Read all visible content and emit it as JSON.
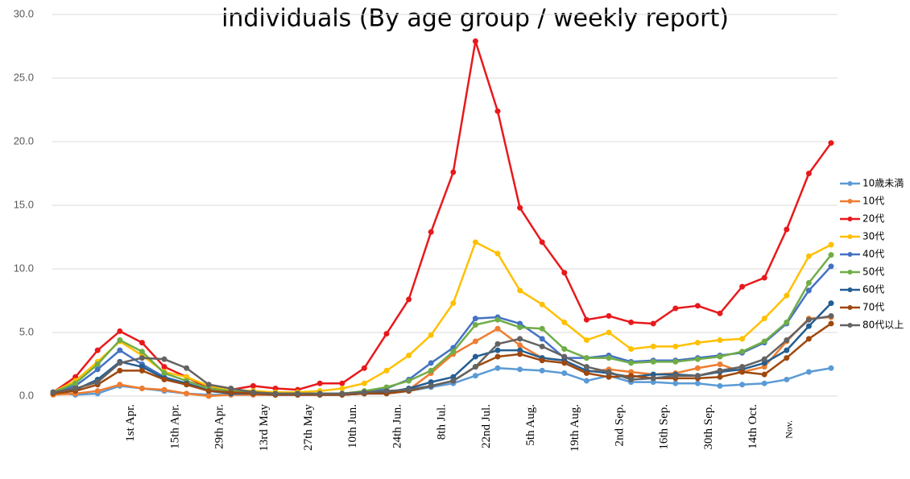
{
  "chart_data": {
    "type": "line",
    "title": "individuals (By age group / weekly report)",
    "categories": [
      null,
      null,
      null,
      "1st Apr.",
      null,
      "15th Apr.",
      null,
      "29th Apr.",
      null,
      "13rd May",
      null,
      "27th May",
      null,
      "10th Jun.",
      null,
      "24th Jun.",
      null,
      "8th Jul.",
      null,
      "22nd Jul.",
      null,
      "5th Aug.",
      null,
      "19th Aug.",
      null,
      "2nd Sep.",
      null,
      "16th Sep.",
      null,
      "30th Sep.",
      null,
      "14th Oct.",
      null,
      "Nov.",
      null,
      null
    ],
    "ylim": [
      0,
      30
    ],
    "yticks": [
      {
        "value": 0,
        "label": "0.0"
      },
      {
        "value": 5,
        "label": "5.0"
      },
      {
        "value": 10,
        "label": "10.0"
      },
      {
        "value": 15,
        "label": "15.0"
      },
      {
        "value": 20,
        "label": "20.0"
      },
      {
        "value": 25,
        "label": "25.0"
      },
      {
        "value": 30,
        "label": "30.0"
      }
    ],
    "grid": true,
    "legend": "right",
    "series": [
      {
        "name": "10歳未満",
        "color": "#5b9bd5",
        "values": [
          0.3,
          0.1,
          0.2,
          0.8,
          0.6,
          0.4,
          0.2,
          0.1,
          0.1,
          0.1,
          0.1,
          0.1,
          0.1,
          0.1,
          0.2,
          0.2,
          0.4,
          0.7,
          1.0,
          1.6,
          2.2,
          2.1,
          2.0,
          1.8,
          1.2,
          1.6,
          1.1,
          1.1,
          1.0,
          1.0,
          0.8,
          0.9,
          1.0,
          1.3,
          1.9,
          2.2
        ]
      },
      {
        "name": "10代",
        "color": "#ed7d31",
        "values": [
          0.1,
          0.2,
          0.4,
          0.9,
          0.6,
          0.5,
          0.2,
          0.0,
          0.1,
          0.1,
          0.1,
          0.1,
          0.1,
          0.1,
          0.2,
          0.3,
          0.5,
          1.8,
          3.3,
          4.3,
          5.3,
          4.0,
          3.0,
          2.8,
          1.9,
          2.1,
          1.9,
          1.7,
          1.8,
          2.2,
          2.5,
          1.9,
          2.3,
          4.3,
          6.1,
          6.2
        ]
      },
      {
        "name": "20代",
        "color": "#e8191c",
        "values": [
          0.3,
          1.5,
          3.6,
          5.1,
          4.2,
          2.3,
          1.5,
          0.6,
          0.5,
          0.8,
          0.6,
          0.5,
          1.0,
          1.0,
          2.2,
          4.9,
          7.6,
          12.9,
          17.6,
          27.9,
          22.4,
          14.8,
          12.1,
          9.7,
          6.0,
          6.3,
          5.8,
          5.7,
          6.9,
          7.1,
          6.5,
          8.6,
          9.3,
          13.1,
          17.5,
          19.9
        ]
      },
      {
        "name": "30代",
        "color": "#ffc000",
        "values": [
          0.3,
          1.2,
          2.7,
          4.3,
          3.2,
          1.9,
          1.5,
          0.8,
          0.5,
          0.4,
          0.3,
          0.3,
          0.4,
          0.6,
          1.0,
          2.0,
          3.2,
          4.8,
          7.3,
          12.1,
          11.2,
          8.3,
          7.2,
          5.8,
          4.4,
          5.0,
          3.7,
          3.9,
          3.9,
          4.2,
          4.4,
          4.5,
          6.1,
          7.9,
          11.0,
          11.9
        ]
      },
      {
        "name": "40代",
        "color": "#4472c4",
        "values": [
          0.3,
          0.8,
          2.1,
          3.6,
          2.5,
          1.5,
          1.0,
          0.5,
          0.3,
          0.2,
          0.1,
          0.2,
          0.1,
          0.1,
          0.3,
          0.6,
          1.3,
          2.6,
          3.8,
          6.1,
          6.2,
          5.7,
          4.5,
          3.0,
          3.0,
          3.2,
          2.7,
          2.8,
          2.8,
          3.0,
          3.2,
          3.4,
          4.2,
          5.7,
          8.3,
          10.2
        ]
      },
      {
        "name": "50代",
        "color": "#70ad47",
        "values": [
          0.3,
          1.0,
          2.5,
          4.4,
          3.5,
          1.8,
          1.2,
          0.6,
          0.4,
          0.3,
          0.2,
          0.2,
          0.2,
          0.2,
          0.4,
          0.7,
          1.2,
          2.0,
          3.5,
          5.6,
          6.0,
          5.4,
          5.3,
          3.7,
          3.0,
          3.0,
          2.6,
          2.7,
          2.7,
          2.9,
          3.1,
          3.5,
          4.3,
          5.8,
          8.9,
          11.1
        ]
      },
      {
        "name": "60代",
        "color": "#255e91",
        "values": [
          0.3,
          0.5,
          1.3,
          2.7,
          2.3,
          1.4,
          1.0,
          0.4,
          0.2,
          0.2,
          0.1,
          0.1,
          0.1,
          0.1,
          0.2,
          0.3,
          0.6,
          1.1,
          1.5,
          3.1,
          3.6,
          3.6,
          3.0,
          2.8,
          2.0,
          1.8,
          1.5,
          1.7,
          1.7,
          1.6,
          1.9,
          2.1,
          2.6,
          3.6,
          5.5,
          7.3
        ]
      },
      {
        "name": "70代",
        "color": "#9e480e",
        "values": [
          0.2,
          0.4,
          0.9,
          2.0,
          2.0,
          1.3,
          0.9,
          0.4,
          0.3,
          0.2,
          0.1,
          0.1,
          0.1,
          0.1,
          0.2,
          0.2,
          0.4,
          0.8,
          1.2,
          2.3,
          3.1,
          3.3,
          2.8,
          2.6,
          1.8,
          1.5,
          1.6,
          1.4,
          1.4,
          1.4,
          1.5,
          1.9,
          1.7,
          3.0,
          4.5,
          5.7
        ]
      },
      {
        "name": "80代以上",
        "color": "#636363",
        "values": [
          0.3,
          0.6,
          1.1,
          2.6,
          3.0,
          2.9,
          2.2,
          0.9,
          0.6,
          0.3,
          0.2,
          0.2,
          0.2,
          0.2,
          0.3,
          0.4,
          0.5,
          0.8,
          1.2,
          2.3,
          4.1,
          4.5,
          3.9,
          3.1,
          2.3,
          1.9,
          1.3,
          1.4,
          1.6,
          1.6,
          2.0,
          2.3,
          2.9,
          4.4,
          6.0,
          6.3
        ]
      }
    ]
  }
}
